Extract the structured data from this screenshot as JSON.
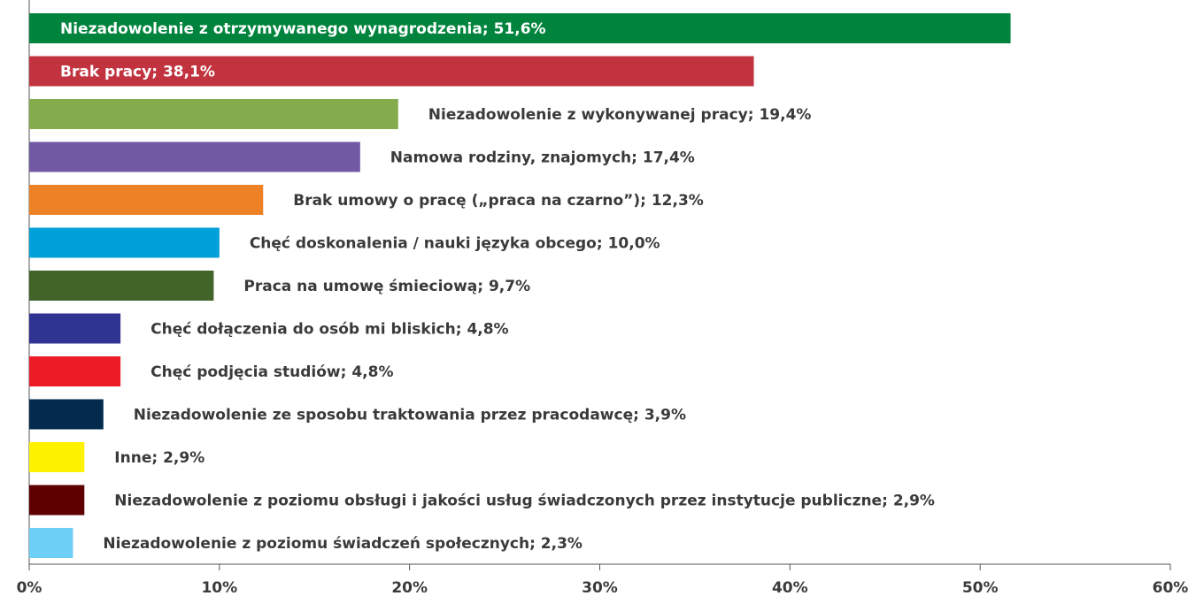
{
  "chart_data": {
    "type": "barh",
    "categories": [
      "Niezadowolenie z otrzymywanego wynagrodzenia;",
      "Brak pracy;",
      "Niezadowolenie z wykonywanej pracy;",
      "Namowa rodziny, znajomych;",
      "Brak umowy o pracę („praca na czarno”);",
      "Chęć doskonalenia / nauki języka obcego;",
      "Praca na umowę śmieciową;",
      "Chęć dołączenia do osób mi bliskich;",
      "Chęć podjęcia studiów;",
      "Niezadowolenie ze sposobu traktowania przez pracodawcę;",
      "Inne;",
      "Niezadowolenie z poziomu obsługi i jakości usług świadczonych przez instytucje publiczne;",
      "Niezadowolenie z poziomu świadczeń społecznych;"
    ],
    "values": [
      51.6,
      38.1,
      19.4,
      17.4,
      12.3,
      10.0,
      9.7,
      4.8,
      4.8,
      3.9,
      2.9,
      2.9,
      2.3
    ],
    "value_labels": [
      "51,6%",
      "38,1%",
      "19,4%",
      "17,4%",
      "12,3%",
      "10,0%",
      "9,7%",
      "4,8%",
      "4,8%",
      "3,9%",
      "2,9%",
      "2,9%",
      "2,3%"
    ],
    "colors": [
      "#00843d",
      "#c1343f",
      "#84ac4c",
      "#7159a4",
      "#ec8125",
      "#00a0d9",
      "#426428",
      "#2f3392",
      "#ec1c27",
      "#012a4c",
      "#fff200",
      "#5e0000",
      "#6dcff6"
    ],
    "xlim": [
      0,
      60
    ],
    "xticks": [
      {
        "value": 0,
        "label": "0%"
      },
      {
        "value": 10,
        "label": "10%"
      },
      {
        "value": 20,
        "label": "20%"
      },
      {
        "value": 30,
        "label": "30%"
      },
      {
        "value": 40,
        "label": "40%"
      },
      {
        "value": 50,
        "label": "50%"
      },
      {
        "value": 60,
        "label": "60%"
      }
    ]
  }
}
